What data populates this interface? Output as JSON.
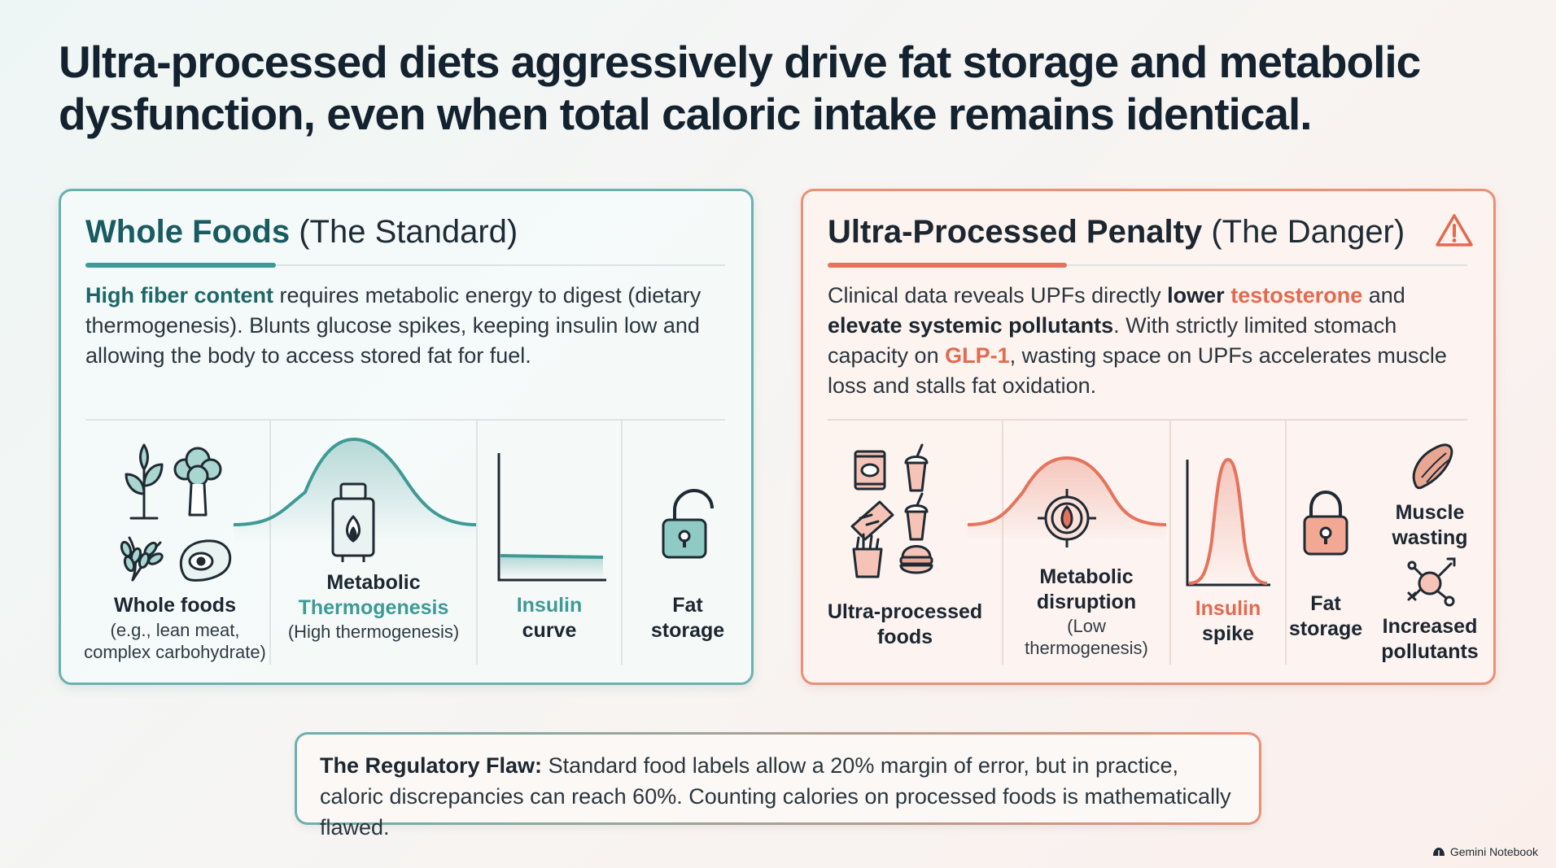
{
  "title": "Ultra-processed diets aggressively drive fat storage and metabolic dysfunction, even when total caloric intake remains identical.",
  "left": {
    "head_bold": "Whole Foods",
    "head_rest": "(The Standard)",
    "desc_lead": "High fiber content",
    "desc_rest": "requires metabolic energy to digest (dietary thermogenesis). Blunts glucose spikes, keeping insulin low and allowing the body to access stored fat for fuel.",
    "col1_label": "Whole foods",
    "col1_sub1": "(e.g., lean meat,",
    "col1_sub2": "complex carbohydrate)",
    "col2_label1": "Metabolic",
    "col2_label2": "Thermogenesis",
    "col2_sub": "(High thermogenesis)",
    "col3_label1": "Insulin",
    "col3_label2": "curve",
    "col4_label1": "Fat",
    "col4_label2": "storage",
    "icons": [
      "sprout-icon",
      "broccoli-icon",
      "wheat-icon",
      "steak-icon",
      "furnace-flame-icon",
      "unlocked-padlock-icon"
    ]
  },
  "right": {
    "head_bold": "Ultra-Processed Penalty",
    "head_rest": "(The Danger)",
    "desc_p1": "Clinical data reveals UPFs directly",
    "desc_b1": "lower",
    "desc_o1": "testosterone",
    "desc_p2": "and",
    "desc_b2": "elevate systemic pollutants",
    "desc_p3": ". With strictly limited stomach capacity on",
    "desc_o2": "GLP-1",
    "desc_p4": ", wasting space on UPFs accelerates muscle loss and stalls fat oxidation.",
    "col1_label1": "Ultra-processed",
    "col1_label2": "foods",
    "col2_label1": "Metabolic",
    "col2_label2": "disruption",
    "col2_sub1": "(Low",
    "col2_sub2": "thermogenesis)",
    "col3_label1": "Insulin",
    "col3_label2": "spike",
    "col4_label1": "Fat",
    "col4_label2": "storage",
    "col5_label1": "Muscle",
    "col5_label2": "wasting",
    "col5_label3": "Increased",
    "col5_label4": "pollutants",
    "icons": [
      "warning-icon",
      "chips-bag-icon",
      "soda-cup-icon",
      "candy-bar-icon",
      "fries-icon",
      "burger-icon",
      "target-flame-icon",
      "locked-padlock-icon",
      "muscle-icon",
      "pollutant-molecule-icon"
    ]
  },
  "bottom": {
    "bold": "The Regulatory Flaw:",
    "text": "Standard food labels allow a 20% margin of error, but in practice, caloric discrepancies can reach 60%. Counting calories on processed foods is mathematically flawed."
  },
  "brand": "Gemini Notebook",
  "colors": {
    "teal": "#3e9a96",
    "teal_dark": "#195b60",
    "coral": "#e5735c",
    "ink": "#13222e"
  }
}
